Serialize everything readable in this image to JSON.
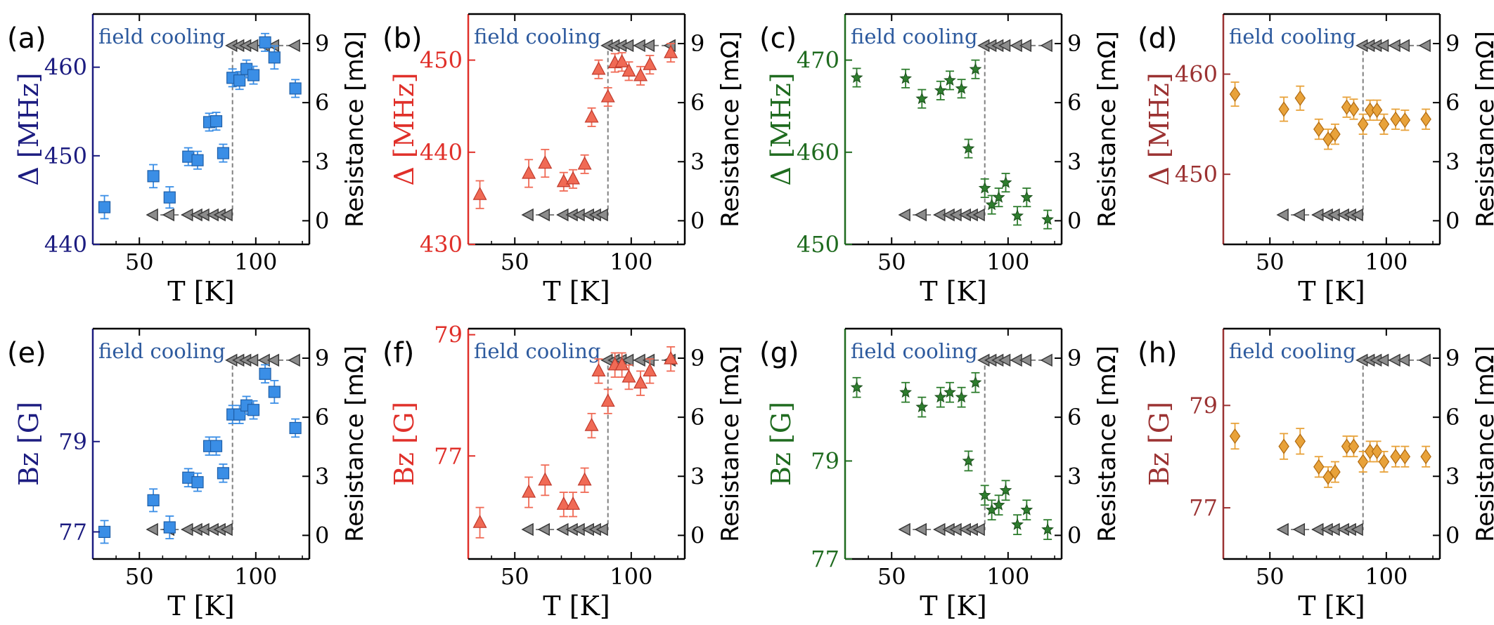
{
  "colors": {
    "blue_axis": "#1c1c80",
    "blue_marker": "#3a8ee6",
    "red_axis": "#e0302a",
    "red_marker": "#f06a55",
    "green_axis": "#1f6b1f",
    "green_marker": "#2e7d2e",
    "brown_axis": "#9b3232",
    "orange_marker": "#e8a23a",
    "annotation": "#2d5a9e",
    "resistance": "#808080"
  },
  "xlabel": "T [K]",
  "right_ylabel": "Resistance [mΩ]",
  "field_cooling_label": "field cooling",
  "chart_data": [
    {
      "panel": "(a)",
      "type": "scatter",
      "ylabel": "Δ [MHz]",
      "ylim": [
        440,
        466
      ],
      "yticks": [
        "440",
        "450",
        "460"
      ],
      "ytick_values": [
        440,
        450,
        460
      ],
      "xlim": [
        30,
        123
      ],
      "xticks": [
        "50",
        "100"
      ],
      "xtick_values": [
        50,
        100
      ],
      "annotation": "field cooling",
      "series_color": "blue",
      "marker": "square",
      "x": [
        35,
        56,
        63,
        71,
        75,
        80,
        83,
        86,
        90,
        93,
        96,
        99,
        104,
        108,
        117
      ],
      "y": [
        444.2,
        447.7,
        445.3,
        449.9,
        449.5,
        453.8,
        453.9,
        450.3,
        458.8,
        458.5,
        459.8,
        459.1,
        462.8,
        461.1,
        457.6
      ],
      "yerr": [
        1.3,
        1.3,
        1.2,
        1.0,
        1.0,
        1.0,
        1.0,
        1.0,
        1.0,
        1.0,
        1.0,
        1.0,
        1.0,
        1.3,
        1.0
      ]
    },
    {
      "panel": "(b)",
      "type": "scatter",
      "ylabel": "Δ [MHz]",
      "ylim": [
        430,
        455
      ],
      "yticks": [
        "430",
        "440",
        "450"
      ],
      "ytick_values": [
        430,
        440,
        450
      ],
      "xlim": [
        30,
        123
      ],
      "xticks": [
        "50",
        "100"
      ],
      "xtick_values": [
        50,
        100
      ],
      "annotation": "field cooling",
      "series_color": "red",
      "marker": "triangle-up",
      "x": [
        35,
        56,
        63,
        71,
        75,
        80,
        83,
        86,
        90,
        93,
        96,
        99,
        104,
        108,
        117
      ],
      "y": [
        435.4,
        437.7,
        438.8,
        436.8,
        437.1,
        438.7,
        443.8,
        449.0,
        446.0,
        449.7,
        449.8,
        448.8,
        448.3,
        449.5,
        450.8
      ],
      "yerr": [
        1.5,
        1.5,
        1.5,
        1.0,
        1.0,
        1.0,
        1.0,
        1.0,
        1.0,
        1.0,
        1.0,
        1.0,
        1.0,
        1.0,
        1.0
      ]
    },
    {
      "panel": "(c)",
      "type": "scatter",
      "ylabel": "Δ [MHz]",
      "ylim": [
        450,
        475
      ],
      "yticks": [
        "450",
        "460",
        "470"
      ],
      "ytick_values": [
        450,
        460,
        470
      ],
      "xlim": [
        30,
        123
      ],
      "xticks": [
        "50",
        "100"
      ],
      "xtick_values": [
        50,
        100
      ],
      "annotation": "field cooling",
      "series_color": "green",
      "marker": "star",
      "x": [
        35,
        56,
        63,
        71,
        75,
        80,
        83,
        86,
        90,
        93,
        96,
        99,
        104,
        108,
        117
      ],
      "y": [
        468.1,
        468.0,
        465.8,
        466.7,
        467.8,
        466.9,
        460.4,
        469.0,
        456.1,
        454.3,
        455.1,
        456.7,
        453.1,
        455.1,
        452.7
      ],
      "yerr": [
        1.0,
        1.0,
        1.0,
        1.0,
        1.0,
        1.0,
        1.0,
        1.0,
        1.0,
        1.0,
        1.0,
        1.0,
        1.0,
        1.0,
        1.0
      ]
    },
    {
      "panel": "(d)",
      "type": "scatter",
      "ylabel": "Δ [MHz]",
      "ylim": [
        443,
        466
      ],
      "yticks": [
        "450",
        "460"
      ],
      "ytick_values": [
        450,
        460
      ],
      "xlim": [
        30,
        123
      ],
      "xticks": [
        "50",
        "100"
      ],
      "xtick_values": [
        50,
        100
      ],
      "annotation": "field cooling",
      "series_color": "orange",
      "marker": "diamond",
      "x": [
        35,
        56,
        63,
        71,
        75,
        78,
        83,
        86,
        90,
        93,
        96,
        99,
        104,
        108,
        117
      ],
      "y": [
        458.0,
        456.5,
        457.6,
        454.5,
        453.5,
        454.0,
        456.7,
        456.5,
        455.0,
        456.4,
        456.4,
        455.0,
        455.5,
        455.4,
        455.5
      ],
      "yerr": [
        1.2,
        1.2,
        1.2,
        1.0,
        1.0,
        1.0,
        1.0,
        1.0,
        1.0,
        1.0,
        1.0,
        1.0,
        1.0,
        1.0,
        1.0
      ]
    },
    {
      "panel": "(e)",
      "type": "scatter",
      "ylabel": "Bz [G]",
      "ylim": [
        76.4,
        81.5
      ],
      "yticks": [
        "77",
        "79"
      ],
      "ytick_values": [
        77,
        79
      ],
      "xlim": [
        30,
        123
      ],
      "xticks": [
        "50",
        "100"
      ],
      "xtick_values": [
        50,
        100
      ],
      "annotation": "field cooling",
      "series_color": "blue",
      "marker": "square",
      "x": [
        35,
        56,
        63,
        71,
        75,
        80,
        83,
        86,
        90,
        93,
        96,
        99,
        104,
        108,
        117
      ],
      "y": [
        77.0,
        77.7,
        77.1,
        78.2,
        78.1,
        78.9,
        78.9,
        78.3,
        79.6,
        79.6,
        79.8,
        79.7,
        80.5,
        80.1,
        79.3
      ],
      "yerr": [
        0.25,
        0.25,
        0.25,
        0.2,
        0.2,
        0.2,
        0.2,
        0.2,
        0.2,
        0.2,
        0.2,
        0.2,
        0.2,
        0.25,
        0.2
      ]
    },
    {
      "panel": "(f)",
      "type": "scatter",
      "ylabel": "Bz [G]",
      "ylim": [
        75.3,
        79.1
      ],
      "yticks": [
        "77",
        "79"
      ],
      "ytick_values": [
        77,
        79
      ],
      "xlim": [
        30,
        123
      ],
      "xticks": [
        "50",
        "100"
      ],
      "xtick_values": [
        50,
        100
      ],
      "annotation": "field cooling",
      "series_color": "red",
      "marker": "triangle-up",
      "x": [
        35,
        56,
        63,
        71,
        75,
        80,
        83,
        86,
        90,
        93,
        96,
        99,
        104,
        108,
        117
      ],
      "y": [
        75.9,
        76.4,
        76.6,
        76.2,
        76.2,
        76.6,
        77.5,
        78.4,
        77.9,
        78.5,
        78.5,
        78.3,
        78.2,
        78.4,
        78.6
      ],
      "yerr": [
        0.25,
        0.25,
        0.25,
        0.2,
        0.2,
        0.2,
        0.2,
        0.2,
        0.2,
        0.2,
        0.2,
        0.2,
        0.2,
        0.2,
        0.2
      ]
    },
    {
      "panel": "(g)",
      "type": "scatter",
      "ylabel": "Bz [G]",
      "ylim": [
        77.0,
        81.7
      ],
      "yticks": [
        "77",
        "79"
      ],
      "ytick_values": [
        77,
        79
      ],
      "xlim": [
        30,
        123
      ],
      "xticks": [
        "50",
        "100"
      ],
      "xtick_values": [
        50,
        100
      ],
      "annotation": "field cooling",
      "series_color": "green",
      "marker": "star",
      "x": [
        35,
        56,
        63,
        71,
        75,
        80,
        83,
        86,
        90,
        93,
        96,
        99,
        104,
        108,
        117
      ],
      "y": [
        80.5,
        80.4,
        80.1,
        80.3,
        80.4,
        80.3,
        79.0,
        80.6,
        78.3,
        78.0,
        78.1,
        78.4,
        77.7,
        78.0,
        77.6
      ],
      "yerr": [
        0.2,
        0.2,
        0.2,
        0.2,
        0.2,
        0.2,
        0.2,
        0.2,
        0.2,
        0.2,
        0.2,
        0.2,
        0.2,
        0.2,
        0.2
      ]
    },
    {
      "panel": "(h)",
      "type": "scatter",
      "ylabel": "Bz [G]",
      "ylim": [
        76.0,
        80.5
      ],
      "yticks": [
        "77",
        "79"
      ],
      "ytick_values": [
        77,
        79
      ],
      "xlim": [
        30,
        123
      ],
      "xticks": [
        "50",
        "100"
      ],
      "xtick_values": [
        50,
        100
      ],
      "annotation": "field cooling",
      "series_color": "orange",
      "marker": "diamond",
      "x": [
        35,
        56,
        63,
        71,
        75,
        78,
        83,
        86,
        90,
        93,
        96,
        99,
        104,
        108,
        117
      ],
      "y": [
        78.4,
        78.2,
        78.3,
        77.8,
        77.6,
        77.7,
        78.2,
        78.2,
        77.9,
        78.1,
        78.1,
        77.9,
        78.0,
        78.0,
        78.0
      ],
      "yerr": [
        0.25,
        0.25,
        0.25,
        0.2,
        0.2,
        0.2,
        0.2,
        0.2,
        0.2,
        0.2,
        0.2,
        0.2,
        0.2,
        0.2,
        0.2
      ]
    }
  ],
  "resistance": {
    "ylim": [
      -1.2,
      10.5
    ],
    "yticks": [
      "0",
      "3",
      "6",
      "9"
    ],
    "ytick_values": [
      0,
      3,
      6,
      9
    ],
    "x": [
      56,
      63,
      71,
      75,
      78,
      82,
      85,
      88,
      90,
      93,
      96,
      99,
      104,
      108,
      117
    ],
    "transition_temperature": 89,
    "low_value": 0.3,
    "high_value": 8.9
  }
}
